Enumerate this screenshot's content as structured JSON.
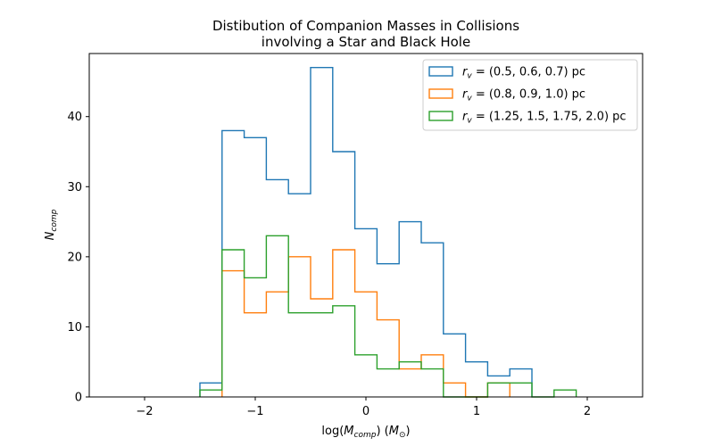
{
  "chart_data": {
    "type": "histogram",
    "title_lines": [
      "Distibution of Companion Masses in Collisions",
      "involving a Star and Black Hole"
    ],
    "xlabel": {
      "main": "log(",
      "var": "M",
      "sub": "comp",
      "mid": ") (",
      "unit": "M",
      "unit_sub": "⊙",
      "end": ")"
    },
    "ylabel": {
      "var": "N",
      "sub": "comp"
    },
    "xlim": [
      -2.5,
      2.5
    ],
    "ylim": [
      0,
      49
    ],
    "xticks": [
      -2,
      -1,
      0,
      1,
      2
    ],
    "xtick_labels": [
      "−2",
      "−1",
      "0",
      "1",
      "2"
    ],
    "yticks": [
      0,
      10,
      20,
      30,
      40
    ],
    "ytick_labels": [
      "0",
      "10",
      "20",
      "30",
      "40"
    ],
    "grid": false,
    "legend_position": "upper right",
    "series": [
      {
        "name_var": "r",
        "name_sub": "v",
        "name_eq": " = (0.5, 0.6, 0.7) pc",
        "color": "#1f77b4",
        "bin_edges": [
          -1.5,
          -1.3,
          -1.1,
          -0.9,
          -0.7,
          -0.5,
          -0.3,
          -0.1,
          0.1,
          0.3,
          0.5,
          0.7,
          0.9,
          1.1,
          1.3,
          1.5
        ],
        "counts": [
          2,
          38,
          37,
          31,
          29,
          47,
          35,
          24,
          19,
          25,
          22,
          9,
          5,
          3,
          4
        ]
      },
      {
        "name_var": "r",
        "name_sub": "v",
        "name_eq": " = (0.8, 0.9, 1.0) pc",
        "color": "#ff7f0e",
        "bin_edges": [
          -1.3,
          -1.1,
          -0.9,
          -0.7,
          -0.5,
          -0.3,
          -0.1,
          0.1,
          0.3,
          0.5,
          0.7,
          0.9,
          1.1,
          1.3
        ],
        "counts": [
          18,
          12,
          15,
          20,
          14,
          21,
          15,
          11,
          4,
          6,
          2,
          0,
          2
        ]
      },
      {
        "name_var": "r",
        "name_sub": "v",
        "name_eq": " = (1.25, 1.5, 1.75, 2.0) pc",
        "color": "#2ca02c",
        "bin_edges": [
          -1.5,
          -1.3,
          -1.1,
          -0.9,
          -0.7,
          -0.5,
          -0.3,
          -0.1,
          0.1,
          0.3,
          0.5,
          0.7,
          0.9,
          1.1,
          1.3,
          1.5,
          1.7,
          1.9
        ],
        "counts": [
          1,
          21,
          17,
          23,
          12,
          12,
          13,
          6,
          4,
          5,
          4,
          0,
          0,
          2,
          2,
          0,
          1
        ]
      }
    ]
  }
}
